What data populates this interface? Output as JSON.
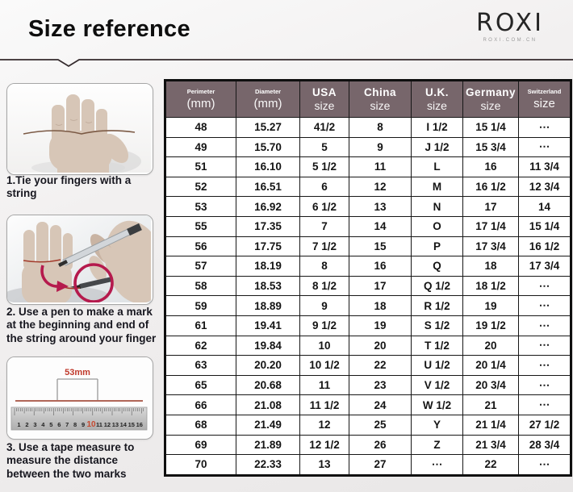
{
  "page": {
    "title": "Size reference"
  },
  "brand": {
    "logo_text": "ROXI",
    "tagline": "ROXI.COM.CN"
  },
  "steps": [
    {
      "caption": "1.Tie your fingers with a string",
      "illustration": "hand-tied-with-string"
    },
    {
      "caption": "2. Use a pen to make a mark at the beginning and end of the string around your finger",
      "illustration": "pen-marking-finger"
    },
    {
      "caption": "3. Use a tape measure to measure the distance between the two marks",
      "illustration": "ruler-measuring-string",
      "measurement_label": "53mm",
      "ruler_numbers": [
        "1",
        "2",
        "3",
        "4",
        "5",
        "6",
        "7",
        "8",
        "9",
        "10",
        "11",
        "12",
        "13",
        "14",
        "15",
        "16"
      ],
      "ruler_highlight": "10"
    }
  ],
  "chart_data": {
    "type": "table",
    "title": "Size reference",
    "columns": [
      {
        "key": "perimeter",
        "line1": "Perimeter",
        "line2": "(mm)",
        "style": "small"
      },
      {
        "key": "diameter",
        "line1": "Diameter",
        "line2": "(mm)",
        "style": "small"
      },
      {
        "key": "usa",
        "line1": "USA",
        "line2": "size",
        "style": "big"
      },
      {
        "key": "china",
        "line1": "China",
        "line2": "size",
        "style": "big"
      },
      {
        "key": "uk",
        "line1": "U.K.",
        "line2": "size",
        "style": "big"
      },
      {
        "key": "germany",
        "line1": "Germany",
        "line2": "size",
        "style": "big"
      },
      {
        "key": "switzerland",
        "line1": "Switzerland",
        "line2": "size",
        "style": "small"
      }
    ],
    "rows": [
      [
        "48",
        "15.27",
        "41/2",
        "8",
        "I 1/2",
        "15 1/4",
        "⋯"
      ],
      [
        "49",
        "15.70",
        "5",
        "9",
        "J 1/2",
        "15 3/4",
        "⋯"
      ],
      [
        "51",
        "16.10",
        "5 1/2",
        "11",
        "L",
        "16",
        "11 3/4"
      ],
      [
        "52",
        "16.51",
        "6",
        "12",
        "M",
        "16 1/2",
        "12 3/4"
      ],
      [
        "53",
        "16.92",
        "6 1/2",
        "13",
        "N",
        "17",
        "14"
      ],
      [
        "55",
        "17.35",
        "7",
        "14",
        "O",
        "17 1/4",
        "15 1/4"
      ],
      [
        "56",
        "17.75",
        "7 1/2",
        "15",
        "P",
        "17 3/4",
        "16 1/2"
      ],
      [
        "57",
        "18.19",
        "8",
        "16",
        "Q",
        "18",
        "17 3/4"
      ],
      [
        "58",
        "18.53",
        "8 1/2",
        "17",
        "Q 1/2",
        "18 1/2",
        "⋯"
      ],
      [
        "59",
        "18.89",
        "9",
        "18",
        "R 1/2",
        "19",
        "⋯"
      ],
      [
        "61",
        "19.41",
        "9 1/2",
        "19",
        "S 1/2",
        "19 1/2",
        "⋯"
      ],
      [
        "62",
        "19.84",
        "10",
        "20",
        "T 1/2",
        "20",
        "⋯"
      ],
      [
        "63",
        "20.20",
        "10 1/2",
        "22",
        "U 1/2",
        "20 1/4",
        "⋯"
      ],
      [
        "65",
        "20.68",
        "11",
        "23",
        "V 1/2",
        "20 3/4",
        "⋯"
      ],
      [
        "66",
        "21.08",
        "11 1/2",
        "24",
        "W 1/2",
        "21",
        "⋯"
      ],
      [
        "68",
        "21.49",
        "12",
        "25",
        "Y",
        "21 1/4",
        "27 1/2"
      ],
      [
        "69",
        "21.89",
        "12 1/2",
        "26",
        "Z",
        "21 3/4",
        "28 3/4"
      ],
      [
        "70",
        "22.33",
        "13",
        "27",
        "⋯",
        "22",
        "⋯"
      ]
    ]
  },
  "colors": {
    "table_header_bg": "#77666b",
    "table_border": "#171717",
    "accent_red": "#b51a4d",
    "ruler_label_red": "#c0392b",
    "string_brown": "#7b5a45",
    "divider_dark": "#342a2c",
    "skin_tone": "#d7c6b7"
  }
}
